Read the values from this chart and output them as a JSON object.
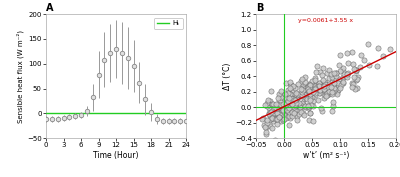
{
  "panel_A": {
    "label": "A",
    "hours": [
      0,
      1,
      2,
      3,
      4,
      5,
      6,
      7,
      8,
      9,
      10,
      11,
      12,
      13,
      14,
      15,
      16,
      17,
      18,
      19,
      20,
      21,
      22,
      23,
      24
    ],
    "H_mean": [
      -12,
      -12,
      -12,
      -10,
      -8,
      -6,
      -4,
      5,
      32,
      78,
      108,
      122,
      130,
      122,
      112,
      95,
      62,
      28,
      2,
      -12,
      -16,
      -16,
      -16,
      -16,
      -16
    ],
    "H_std": [
      6,
      6,
      6,
      6,
      6,
      6,
      6,
      10,
      28,
      48,
      55,
      58,
      58,
      62,
      62,
      52,
      42,
      32,
      18,
      10,
      6,
      6,
      6,
      6,
      6
    ],
    "ylabel": "Sensible heat flux (W m⁻²)",
    "xlabel": "Time (Hour)",
    "xlim": [
      0,
      24
    ],
    "ylim": [
      -50,
      200
    ],
    "xticks": [
      0,
      3,
      6,
      9,
      12,
      15,
      18,
      21,
      24
    ],
    "yticks": [
      -50,
      0,
      50,
      100,
      150,
      200
    ],
    "hline_y": 0,
    "hline_color": "#22cc22",
    "legend_label": "Hₜ",
    "line_color": "#999999",
    "marker": "o",
    "marker_face": "#e0e0e0",
    "marker_edge": "#888888"
  },
  "panel_B": {
    "label": "B",
    "ylabel": "ΔT (°C)",
    "xlabel": "w’t’ (m² s⁻¹)",
    "xlim": [
      -0.05,
      0.2
    ],
    "ylim": [
      -0.4,
      1.2
    ],
    "xticks": [
      -0.05,
      0.0,
      0.05,
      0.1,
      0.15,
      0.2
    ],
    "yticks": [
      -0.4,
      -0.2,
      0.0,
      0.2,
      0.4,
      0.6,
      0.8,
      1.0,
      1.2
    ],
    "vline_x": 0,
    "hline_y": 0,
    "line_color": "#22cc22",
    "fit_color": "#cc0000",
    "fit_label": "y=0.0061+3.55 x",
    "fit_intercept": 0.0061,
    "fit_slope": 3.55,
    "scatter_color": "#cccccc",
    "scatter_edge": "#666666",
    "scatter_size": 14,
    "n_points": 350
  },
  "fig_bg": "#ffffff"
}
